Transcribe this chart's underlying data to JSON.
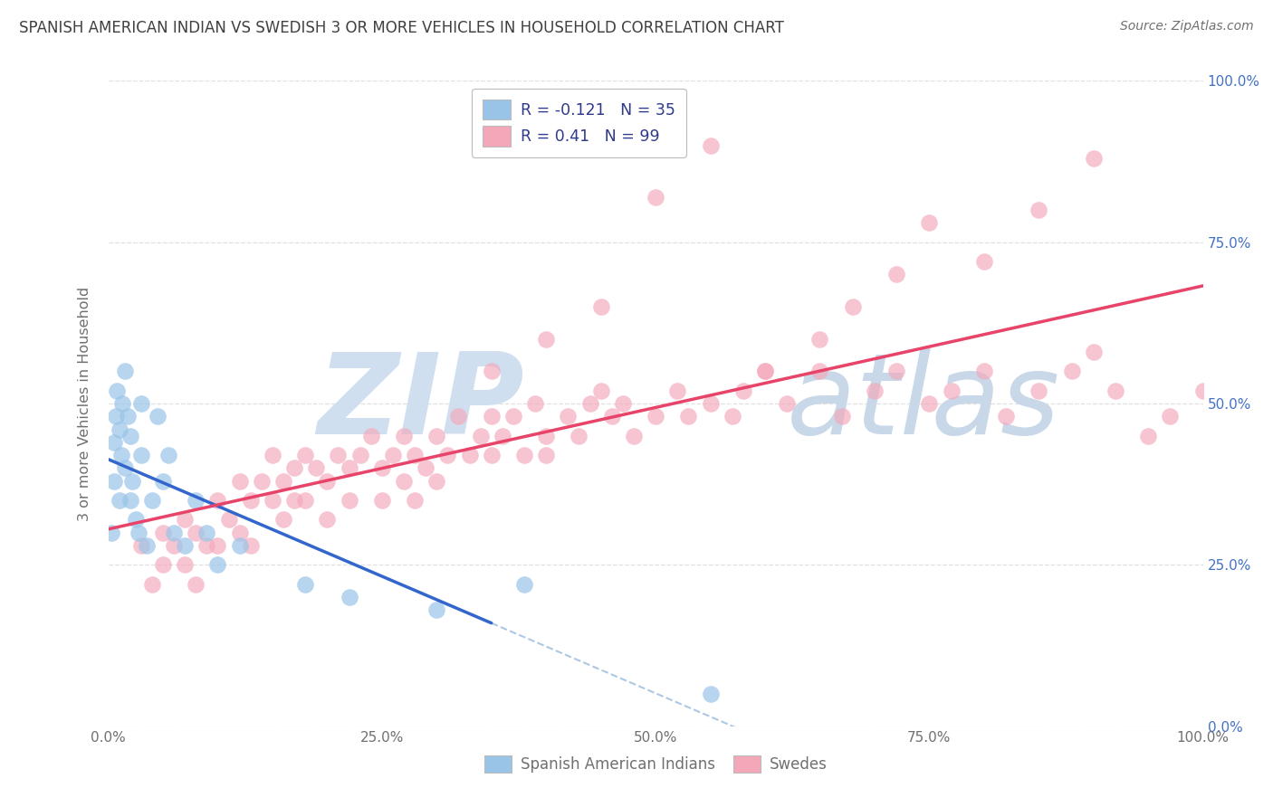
{
  "title": "SPANISH AMERICAN INDIAN VS SWEDISH 3 OR MORE VEHICLES IN HOUSEHOLD CORRELATION CHART",
  "source": "Source: ZipAtlas.com",
  "ylabel": "3 or more Vehicles in Household",
  "xlim": [
    0,
    100
  ],
  "ylim": [
    0,
    100
  ],
  "yticks_right": [
    "0.0%",
    "25.0%",
    "50.0%",
    "75.0%",
    "100.0%"
  ],
  "yticks_right_vals": [
    0,
    25,
    50,
    75,
    100
  ],
  "xtick_labels": [
    "0.0%",
    "25.0%",
    "50.0%",
    "75.0%",
    "100.0%"
  ],
  "xtick_vals": [
    0,
    25,
    50,
    75,
    100
  ],
  "group1": {
    "name": "Spanish American Indians",
    "color": "#99C4E8",
    "R": -0.121,
    "N": 35,
    "line_color": "#3366CC",
    "line_dash_color": "#99BBDD",
    "scatter_x": [
      0.3,
      0.5,
      0.5,
      0.7,
      0.8,
      1.0,
      1.0,
      1.2,
      1.3,
      1.5,
      1.5,
      1.8,
      2.0,
      2.0,
      2.2,
      2.5,
      2.8,
      3.0,
      3.0,
      3.5,
      4.0,
      4.5,
      5.0,
      5.5,
      6.0,
      7.0,
      8.0,
      9.0,
      10.0,
      12.0,
      18.0,
      22.0,
      30.0,
      38.0,
      55.0
    ],
    "scatter_y": [
      30,
      38,
      44,
      48,
      52,
      35,
      46,
      42,
      50,
      55,
      40,
      48,
      35,
      45,
      38,
      32,
      30,
      42,
      50,
      28,
      35,
      48,
      38,
      42,
      30,
      28,
      35,
      30,
      25,
      28,
      22,
      20,
      18,
      22,
      5
    ]
  },
  "group2": {
    "name": "Swedes",
    "color": "#F4A7B9",
    "R": 0.41,
    "N": 99,
    "line_color": "#E8446A",
    "scatter_x": [
      3,
      4,
      5,
      5,
      6,
      7,
      7,
      8,
      8,
      9,
      10,
      10,
      11,
      12,
      12,
      13,
      13,
      14,
      15,
      15,
      16,
      16,
      17,
      17,
      18,
      18,
      19,
      20,
      20,
      21,
      22,
      22,
      23,
      24,
      25,
      25,
      26,
      27,
      27,
      28,
      28,
      29,
      30,
      30,
      31,
      32,
      33,
      34,
      35,
      35,
      36,
      37,
      38,
      39,
      40,
      40,
      42,
      43,
      44,
      45,
      46,
      47,
      48,
      50,
      52,
      53,
      55,
      57,
      58,
      60,
      62,
      65,
      67,
      70,
      72,
      75,
      77,
      80,
      82,
      85,
      88,
      90,
      92,
      95,
      97,
      100,
      35,
      40,
      45,
      50,
      55,
      60,
      65,
      68,
      72,
      75,
      80,
      85,
      90
    ],
    "scatter_y": [
      28,
      22,
      30,
      25,
      28,
      32,
      25,
      30,
      22,
      28,
      35,
      28,
      32,
      38,
      30,
      35,
      28,
      38,
      42,
      35,
      38,
      32,
      40,
      35,
      42,
      35,
      40,
      38,
      32,
      42,
      40,
      35,
      42,
      45,
      40,
      35,
      42,
      45,
      38,
      42,
      35,
      40,
      45,
      38,
      42,
      48,
      42,
      45,
      42,
      48,
      45,
      48,
      42,
      50,
      45,
      42,
      48,
      45,
      50,
      52,
      48,
      50,
      45,
      48,
      52,
      48,
      50,
      48,
      52,
      55,
      50,
      55,
      48,
      52,
      55,
      50,
      52,
      55,
      48,
      52,
      55,
      58,
      52,
      45,
      48,
      52,
      55,
      60,
      65,
      82,
      90,
      55,
      60,
      65,
      70,
      78,
      72,
      80,
      88
    ]
  },
  "watermark_zip": "ZIP",
  "watermark_atlas": "atlas",
  "watermark_color_zip": "#D0DFF0",
  "watermark_color_atlas": "#C8D8E8",
  "background_color": "#FFFFFF",
  "grid_color": "#DDDDDD",
  "title_color": "#404040",
  "axis_label_color": "#707070",
  "right_axis_color": "#4472C4",
  "legend_text_color": "#2E3A8C"
}
